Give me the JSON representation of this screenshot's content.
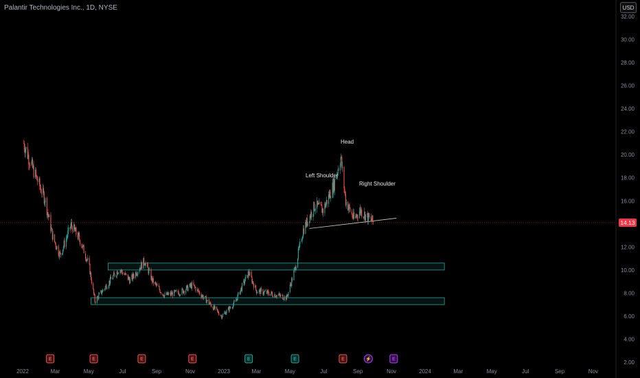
{
  "header": {
    "title": "Palantir Technologies Inc., 1D, NYSE"
  },
  "currency": "USD",
  "last_price_label": "14.13",
  "annotations": {
    "head": "Head",
    "left_shoulder": "Left Shoulder",
    "right_shoulder": "Right Shoulder"
  },
  "colors": {
    "up": "#26a69a",
    "down": "#ef5350",
    "zone": "#26a69a",
    "last_price": "#f23645",
    "bg": "#000000"
  },
  "chart_data": {
    "type": "candlestick",
    "title": "Palantir Technologies Inc., 1D, NYSE",
    "y_ticks": [
      "32.00",
      "30.00",
      "28.00",
      "26.00",
      "24.00",
      "22.00",
      "20.00",
      "18.00",
      "16.00",
      "14.00",
      "12.00",
      "10.00",
      "8.00",
      "6.00",
      "4.00",
      "2.00"
    ],
    "ylim": [
      2,
      32
    ],
    "x_ticks": [
      "2022",
      "Mar",
      "May",
      "Jul",
      "Sep",
      "Nov",
      "2023",
      "Mar",
      "May",
      "Jul",
      "Sep",
      "Nov",
      "2024",
      "Mar",
      "May",
      "Jul",
      "Sep",
      "Nov"
    ],
    "last_price": 14.13,
    "price_path": [
      {
        "date": "2022-01-03",
        "close": 21.0
      },
      {
        "date": "2022-01-20",
        "close": 18.7
      },
      {
        "date": "2022-02-10",
        "close": 16.2
      },
      {
        "date": "2022-02-25",
        "close": 12.8
      },
      {
        "date": "2022-03-10",
        "close": 11.3
      },
      {
        "date": "2022-03-30",
        "close": 13.9
      },
      {
        "date": "2022-04-15",
        "close": 12.6
      },
      {
        "date": "2022-05-01",
        "close": 10.5
      },
      {
        "date": "2022-05-12",
        "close": 7.3
      },
      {
        "date": "2022-06-01",
        "close": 8.6
      },
      {
        "date": "2022-06-25",
        "close": 10.1
      },
      {
        "date": "2022-07-15",
        "close": 9.1
      },
      {
        "date": "2022-08-10",
        "close": 10.8
      },
      {
        "date": "2022-08-25",
        "close": 9.0
      },
      {
        "date": "2022-09-15",
        "close": 7.8
      },
      {
        "date": "2022-10-15",
        "close": 8.1
      },
      {
        "date": "2022-11-05",
        "close": 8.7
      },
      {
        "date": "2022-11-20",
        "close": 7.9
      },
      {
        "date": "2022-12-28",
        "close": 6.0
      },
      {
        "date": "2023-01-20",
        "close": 7.1
      },
      {
        "date": "2023-02-15",
        "close": 9.8
      },
      {
        "date": "2023-03-01",
        "close": 8.2
      },
      {
        "date": "2023-04-01",
        "close": 7.9
      },
      {
        "date": "2023-04-25",
        "close": 7.6
      },
      {
        "date": "2023-05-10",
        "close": 10.1
      },
      {
        "date": "2023-05-25",
        "close": 13.5
      },
      {
        "date": "2023-06-15",
        "close": 15.6
      },
      {
        "date": "2023-06-30",
        "close": 15.2
      },
      {
        "date": "2023-07-20",
        "close": 17.5
      },
      {
        "date": "2023-08-01",
        "close": 19.8
      },
      {
        "date": "2023-08-10",
        "close": 16.0
      },
      {
        "date": "2023-08-25",
        "close": 14.4
      },
      {
        "date": "2023-09-05",
        "close": 15.2
      },
      {
        "date": "2023-09-20",
        "close": 14.5
      },
      {
        "date": "2023-09-30",
        "close": 14.13
      }
    ],
    "zones": [
      {
        "from": "2022-06-05",
        "to": "2024-02-05",
        "low": 10.0,
        "high": 10.6
      },
      {
        "from": "2022-05-05",
        "to": "2024-02-05",
        "low": 7.0,
        "high": 7.6
      }
    ],
    "neckline": {
      "from": {
        "date": "2023-06-05",
        "price": 13.6
      },
      "to": {
        "date": "2023-11-10",
        "price": 14.5
      }
    },
    "price_line": 14.13,
    "events": [
      {
        "date": "2022-02-20",
        "type": "E",
        "color": "#ef5350"
      },
      {
        "date": "2022-05-10",
        "type": "E",
        "color": "#ef5350"
      },
      {
        "date": "2022-08-05",
        "type": "E",
        "color": "#ef5350"
      },
      {
        "date": "2022-11-05",
        "type": "E",
        "color": "#ef5350"
      },
      {
        "date": "2023-02-15",
        "type": "E",
        "color": "#26a69a"
      },
      {
        "date": "2023-05-10",
        "type": "E",
        "color": "#26a69a"
      },
      {
        "date": "2023-08-05",
        "type": "E",
        "color": "#ef5350"
      },
      {
        "date": "2023-09-20",
        "type": "⚡",
        "color": "#b040ff"
      },
      {
        "date": "2023-11-05",
        "type": "E",
        "color": "#b040ff"
      }
    ]
  }
}
